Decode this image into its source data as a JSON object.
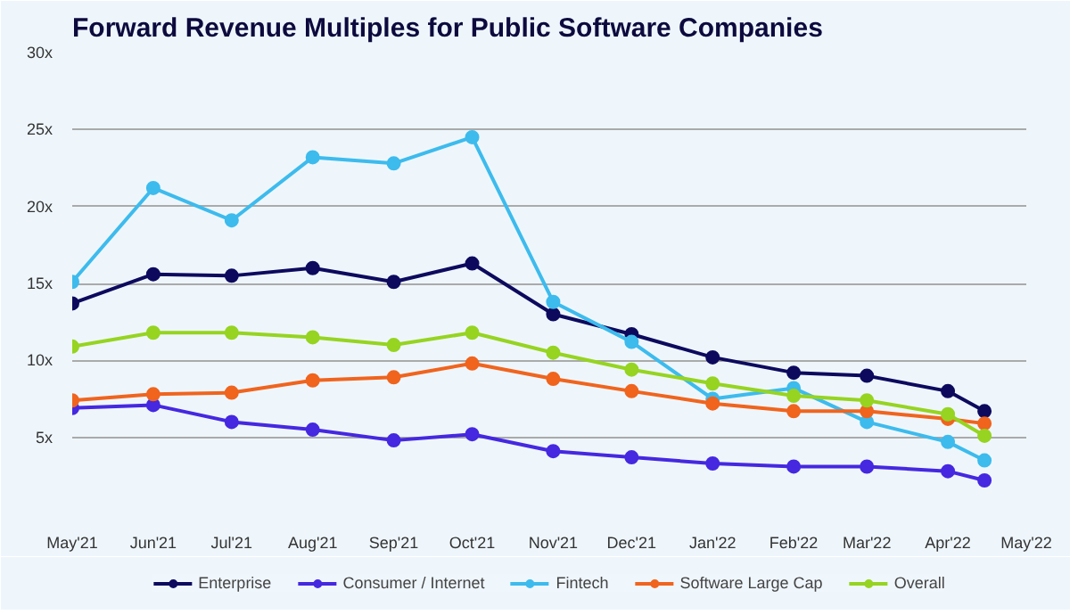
{
  "chart_data": {
    "type": "line",
    "title": "Forward Revenue Multiples for Public Software Companies",
    "x": [
      "2021-05-01",
      "2021-06-01",
      "2021-07-01",
      "2021-08-01",
      "2021-09-01",
      "2021-10-01",
      "2021-11-01",
      "2021-12-01",
      "2022-01-01",
      "2022-02-01",
      "2022-03-01",
      "2022-04-01",
      "2022-04-15"
    ],
    "xlim": [
      "2021-05-01",
      "2022-05-01"
    ],
    "xticks": [
      {
        "value": "2021-05-01",
        "label": "May'21"
      },
      {
        "value": "2021-06-01",
        "label": "Jun'21"
      },
      {
        "value": "2021-07-01",
        "label": "Jul'21"
      },
      {
        "value": "2021-08-01",
        "label": "Aug'21"
      },
      {
        "value": "2021-09-01",
        "label": "Sep'21"
      },
      {
        "value": "2021-10-01",
        "label": "Oct'21"
      },
      {
        "value": "2021-11-01",
        "label": "Nov'21"
      },
      {
        "value": "2021-12-01",
        "label": "Dec'21"
      },
      {
        "value": "2022-01-01",
        "label": "Jan'22"
      },
      {
        "value": "2022-02-01",
        "label": "Feb'22"
      },
      {
        "value": "2022-03-01",
        "label": "Mar'22"
      },
      {
        "value": "2022-04-01",
        "label": "Apr'22"
      },
      {
        "value": "2022-05-01",
        "label": "May'22"
      }
    ],
    "ylim": [
      0,
      30
    ],
    "yticks": [
      {
        "value": 0,
        "label": null
      },
      {
        "value": 5,
        "label": "5x"
      },
      {
        "value": 10,
        "label": "10x"
      },
      {
        "value": 15,
        "label": "15x"
      },
      {
        "value": 20,
        "label": "20x"
      },
      {
        "value": 25,
        "label": "25x"
      },
      {
        "value": 30,
        "label": "30x"
      }
    ],
    "grid": "y",
    "legend": "bottom",
    "marker": "circle",
    "line_style": "solid",
    "series": [
      {
        "name": "Enterprise",
        "color": "#0d0a5e",
        "values": [
          13.7,
          15.6,
          15.5,
          16.0,
          15.1,
          16.3,
          13.0,
          11.7,
          10.2,
          9.2,
          9.0,
          8.0,
          6.7
        ]
      },
      {
        "name": "Consumer / Internet",
        "color": "#4528e0",
        "values": [
          6.9,
          7.1,
          6.0,
          5.5,
          4.8,
          5.2,
          4.1,
          3.7,
          3.3,
          3.1,
          3.1,
          2.8,
          2.2
        ]
      },
      {
        "name": "Fintech",
        "color": "#3dbbed",
        "values": [
          15.1,
          21.2,
          19.1,
          23.2,
          22.8,
          24.5,
          13.8,
          11.2,
          7.5,
          8.2,
          6.0,
          4.7,
          3.5
        ]
      },
      {
        "name": "Software Large Cap",
        "color": "#f0641e",
        "values": [
          7.4,
          7.8,
          7.9,
          8.7,
          8.9,
          9.8,
          8.8,
          8.0,
          7.2,
          6.7,
          6.7,
          6.2,
          5.9
        ]
      },
      {
        "name": "Overall",
        "color": "#96d421",
        "values": [
          10.9,
          11.8,
          11.8,
          11.5,
          11.0,
          11.8,
          10.5,
          9.4,
          8.5,
          7.7,
          7.4,
          6.5,
          5.1
        ]
      }
    ]
  }
}
